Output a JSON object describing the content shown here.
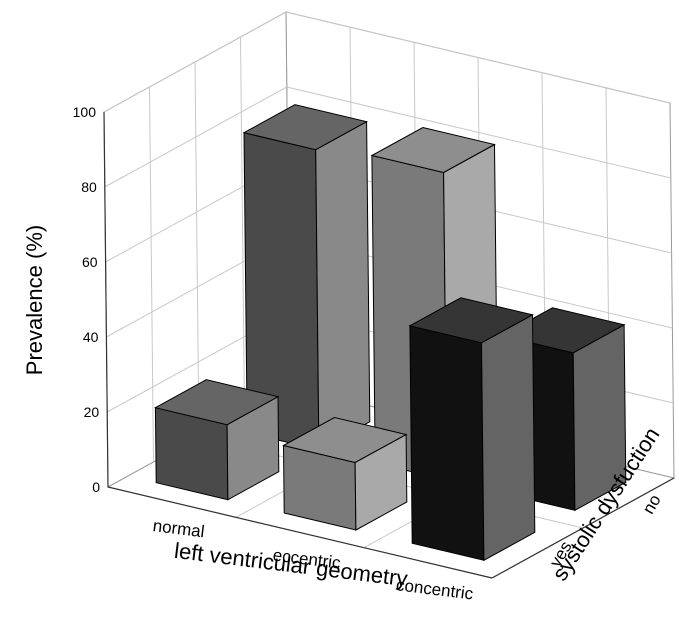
{
  "chart_data": {
    "type": "bar",
    "subtype": "3d-bar",
    "title": "",
    "ylabel": "Prevalence (%)",
    "xlabel": "left ventricular geometry",
    "zlabel": "systolic dysfuction",
    "ylim": [
      0,
      100
    ],
    "y_ticks": [
      "0",
      "20",
      "40",
      "60",
      "80",
      "100"
    ],
    "categories": [
      "normal",
      "eccentric",
      "concentric"
    ],
    "depth_categories": [
      "yes",
      "no"
    ],
    "grid": true,
    "series": [
      {
        "name": "yes",
        "values": [
          20,
          18,
          58
        ]
      },
      {
        "name": "no",
        "values": [
          80,
          82,
          42
        ]
      }
    ],
    "colors": {
      "normal": "#4a4a4a",
      "eccentric": "#7a7a7a",
      "concentric": "#111111"
    }
  }
}
